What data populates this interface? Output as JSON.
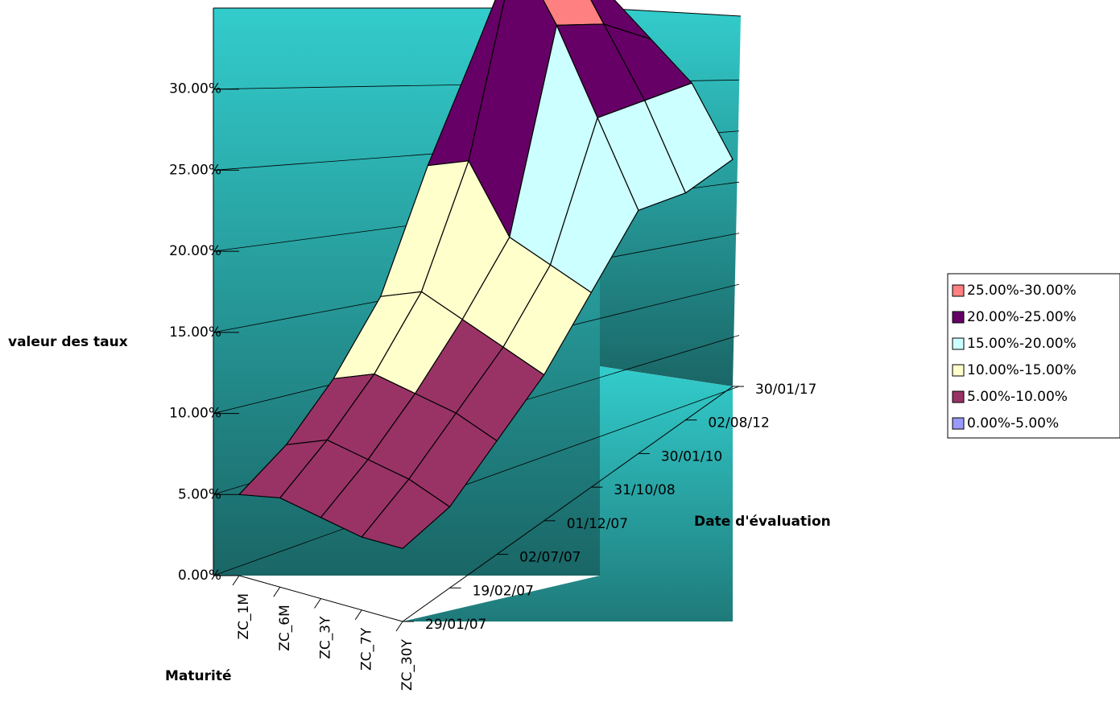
{
  "chart_data": {
    "type": "surface",
    "zlabel": "valeur des taux",
    "xlabel": "Maturité",
    "ylabel": "Date d'évaluation",
    "maturities": [
      "ZC_1M",
      "ZC_6M",
      "ZC_3Y",
      "ZC_7Y",
      "ZC_30Y"
    ],
    "dates": [
      "29/01/07",
      "19/02/07",
      "02/07/07",
      "01/12/07",
      "31/10/08",
      "30/01/10",
      "02/08/12",
      "30/01/17"
    ],
    "values": [
      [
        5,
        5.5,
        5,
        4.5,
        4.5
      ],
      [
        6,
        7,
        6.5,
        6,
        5
      ],
      [
        8,
        9,
        8.5,
        8,
        7
      ],
      [
        11,
        12,
        11,
        10,
        9
      ],
      [
        17,
        18,
        14,
        13,
        12
      ],
      [
        22,
        29,
        25,
        20,
        15
      ],
      [
        20,
        27,
        23,
        19,
        14
      ],
      [
        18,
        22,
        20,
        18,
        14
      ]
    ],
    "zlim": [
      0,
      35
    ],
    "zticks": [
      {
        "value": 0,
        "label": "0.00%"
      },
      {
        "value": 5,
        "label": "5.00%"
      },
      {
        "value": 10,
        "label": "10.00%"
      },
      {
        "value": 15,
        "label": "15.00%"
      },
      {
        "value": 20,
        "label": "20.00%"
      },
      {
        "value": 25,
        "label": "25.00%"
      },
      {
        "value": 30,
        "label": "30.00%"
      }
    ],
    "series": [
      {
        "name": "25.00%-30.00%",
        "color": "#ff8080",
        "range": [
          25,
          30
        ]
      },
      {
        "name": "20.00%-25.00%",
        "color": "#660066",
        "range": [
          20,
          25
        ]
      },
      {
        "name": "15.00%-20.00%",
        "color": "#ccffff",
        "range": [
          15,
          20
        ]
      },
      {
        "name": "10.00%-15.00%",
        "color": "#ffffcc",
        "range": [
          10,
          15
        ]
      },
      {
        "name": "5.00%-10.00%",
        "color": "#993366",
        "range": [
          5,
          10
        ]
      },
      {
        "name": "0.00%-5.00%",
        "color": "#9999ff",
        "range": [
          0,
          5
        ]
      }
    ],
    "grid": true,
    "legend": "right"
  }
}
